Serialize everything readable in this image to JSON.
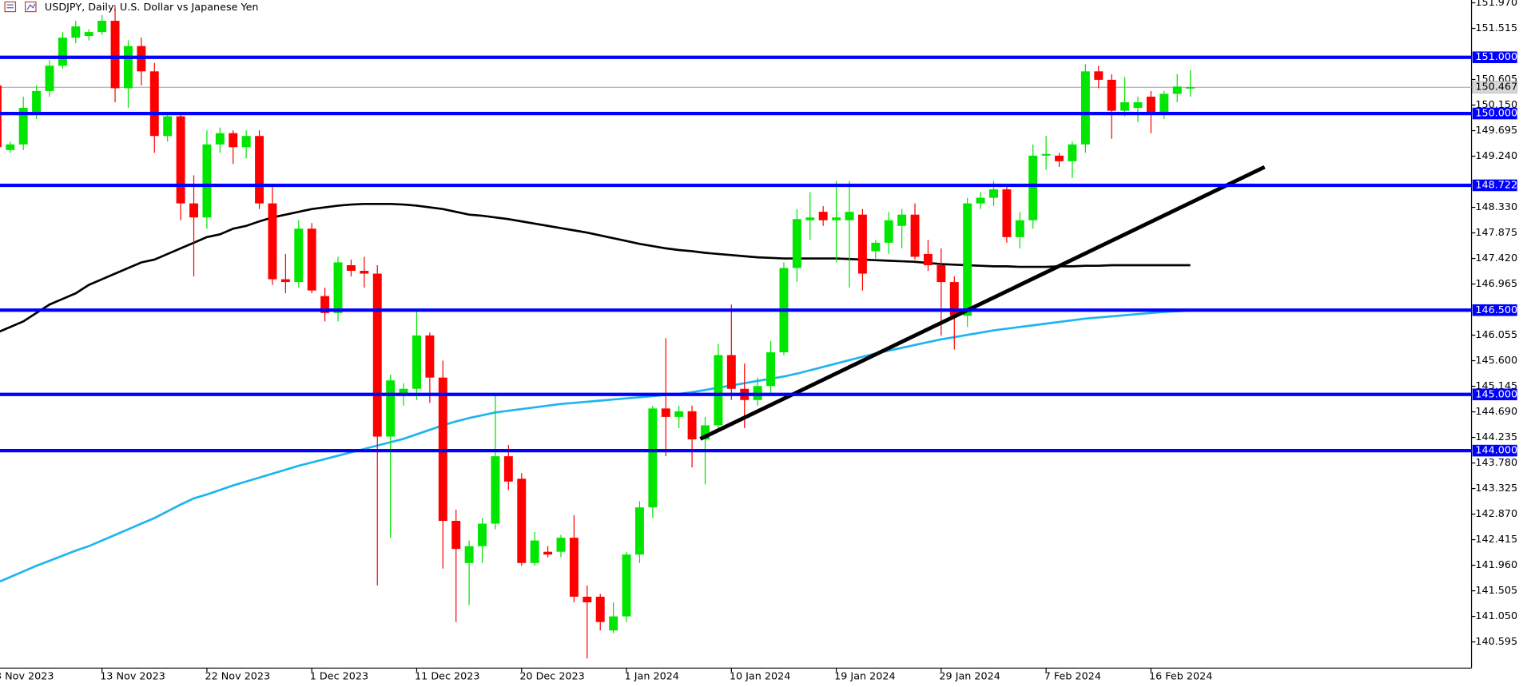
{
  "chart_data": {
    "type": "candlestick",
    "title": "USDJPY, Daily:  U.S. Dollar vs Japanese Yen",
    "categories": [
      "3 Nov 2023",
      null,
      null,
      null,
      null,
      null,
      null,
      null,
      "13 Nov 2023",
      null,
      null,
      null,
      null,
      null,
      null,
      null,
      "22 Nov 2023",
      null,
      null,
      null,
      null,
      null,
      null,
      null,
      "1 Dec 2023",
      null,
      null,
      null,
      null,
      null,
      null,
      null,
      "11 Dec 2023",
      null,
      null,
      null,
      null,
      null,
      null,
      null,
      "20 Dec 2023",
      null,
      null,
      null,
      null,
      null,
      null,
      null,
      "1 Jan 2024",
      null,
      null,
      null,
      null,
      null,
      null,
      null,
      "10 Jan 2024",
      null,
      null,
      null,
      null,
      null,
      null,
      null,
      "19 Jan 2024",
      null,
      null,
      null,
      null,
      null,
      null,
      null,
      "29 Jan 2024",
      null,
      null,
      null,
      null,
      null,
      null,
      null,
      "7 Feb 2024",
      null,
      null,
      null,
      null,
      null,
      null,
      null,
      "16 Feb 2024",
      null,
      null,
      null
    ],
    "open": [
      150.5,
      149.35,
      149.45,
      150.0,
      150.4,
      150.85,
      151.35,
      151.38,
      151.45,
      151.65,
      150.45,
      151.2,
      150.75,
      149.6,
      149.95,
      148.4,
      148.15,
      149.45,
      149.65,
      149.4,
      149.6,
      148.4,
      147.05,
      147.0,
      147.95,
      146.75,
      146.45,
      147.3,
      147.2,
      147.15,
      144.25,
      145.0,
      145.1,
      146.05,
      145.3,
      142.75,
      142.0,
      142.3,
      142.7,
      143.9,
      143.5,
      142.0,
      142.2,
      142.2,
      142.45,
      141.4,
      141.4,
      140.8,
      141.05,
      142.15,
      142.99,
      144.75,
      144.6,
      144.7,
      144.2,
      144.45,
      145.7,
      145.1,
      144.9,
      145.15,
      145.75,
      147.25,
      148.1,
      148.25,
      148.1,
      148.1,
      148.2,
      147.55,
      147.7,
      148.0,
      148.2,
      147.5,
      147.3,
      147.0,
      146.4,
      148.4,
      148.5,
      148.65,
      147.8,
      148.1,
      149.25,
      149.25,
      149.15,
      149.45,
      150.75,
      150.6,
      150.05,
      150.1,
      150.3,
      150.0,
      150.35,
      150.46
    ],
    "high": [
      150.7,
      149.5,
      150.3,
      150.5,
      150.95,
      151.45,
      151.65,
      151.5,
      151.75,
      151.9,
      151.3,
      151.35,
      150.9,
      150.0,
      150.0,
      148.9,
      149.7,
      149.75,
      149.7,
      149.7,
      149.7,
      148.75,
      147.5,
      148.1,
      148.05,
      146.9,
      147.45,
      147.4,
      147.45,
      147.3,
      145.35,
      145.2,
      146.5,
      146.1,
      145.6,
      142.95,
      142.4,
      142.8,
      145.0,
      144.1,
      143.6,
      142.55,
      142.3,
      142.5,
      142.85,
      141.6,
      141.45,
      141.3,
      142.2,
      143.1,
      144.8,
      146.0,
      144.8,
      144.8,
      144.6,
      145.9,
      146.6,
      145.55,
      145.3,
      145.95,
      147.35,
      148.3,
      148.6,
      148.35,
      148.8,
      148.8,
      148.3,
      147.75,
      148.25,
      148.3,
      148.4,
      147.75,
      147.6,
      147.1,
      148.5,
      148.6,
      148.8,
      148.7,
      148.25,
      149.45,
      149.6,
      149.3,
      149.5,
      150.88,
      150.85,
      150.7,
      150.65,
      150.3,
      150.4,
      150.4,
      150.7,
      150.77
    ],
    "low": [
      149.3,
      149.3,
      149.35,
      149.9,
      150.3,
      150.8,
      151.25,
      151.3,
      151.4,
      150.2,
      150.1,
      150.5,
      149.3,
      149.5,
      148.1,
      147.1,
      147.95,
      149.3,
      149.1,
      149.2,
      148.3,
      146.95,
      146.8,
      146.9,
      146.8,
      146.3,
      146.3,
      147.1,
      146.9,
      141.6,
      142.45,
      144.8,
      144.9,
      144.85,
      141.9,
      140.95,
      141.25,
      142.0,
      142.6,
      143.3,
      141.95,
      141.95,
      142.1,
      142.1,
      141.3,
      140.3,
      140.8,
      140.75,
      140.95,
      142.0,
      142.8,
      143.9,
      144.4,
      143.7,
      143.4,
      144.4,
      144.9,
      144.4,
      144.8,
      145.0,
      145.7,
      147.0,
      147.75,
      148.0,
      147.35,
      146.9,
      146.85,
      147.4,
      147.5,
      147.6,
      147.4,
      147.2,
      146.05,
      145.8,
      146.2,
      148.3,
      148.35,
      147.7,
      147.6,
      147.95,
      149.0,
      149.05,
      148.85,
      149.3,
      150.45,
      149.55,
      149.95,
      149.85,
      149.65,
      149.9,
      150.2,
      150.3
    ],
    "close": [
      149.4,
      149.45,
      150.1,
      150.4,
      150.85,
      151.35,
      151.55,
      151.45,
      151.65,
      150.45,
      151.2,
      150.75,
      149.6,
      149.95,
      148.4,
      148.15,
      149.45,
      149.65,
      149.4,
      149.6,
      148.4,
      147.05,
      147.0,
      147.95,
      146.85,
      146.45,
      147.35,
      147.2,
      147.15,
      144.25,
      145.25,
      145.1,
      146.05,
      145.3,
      142.75,
      142.25,
      142.3,
      142.7,
      143.9,
      143.45,
      142.0,
      142.4,
      142.15,
      142.45,
      141.4,
      141.3,
      140.95,
      141.05,
      142.15,
      142.99,
      144.75,
      144.6,
      144.7,
      144.2,
      144.45,
      145.7,
      145.1,
      144.9,
      145.15,
      145.75,
      147.25,
      148.12,
      148.15,
      148.1,
      148.15,
      148.25,
      147.15,
      147.7,
      148.1,
      148.2,
      147.45,
      147.3,
      147.0,
      146.4,
      148.4,
      148.5,
      148.65,
      147.8,
      148.1,
      149.25,
      149.28,
      149.15,
      149.45,
      150.75,
      150.6,
      150.05,
      150.2,
      150.2,
      150.0,
      150.35,
      150.48,
      150.47
    ],
    "up_color": "#00e600",
    "down_color": "#ff0000",
    "lines": [
      {
        "color": "#000000",
        "values": [
          146.1,
          146.2,
          146.3,
          146.45,
          146.6,
          146.7,
          146.8,
          146.95,
          147.05,
          147.15,
          147.25,
          147.35,
          147.4,
          147.5,
          147.6,
          147.7,
          147.8,
          147.85,
          147.95,
          148.0,
          148.08,
          148.15,
          148.2,
          148.25,
          148.3,
          148.33,
          148.36,
          148.38,
          148.39,
          148.39,
          148.39,
          148.38,
          148.36,
          148.33,
          148.3,
          148.25,
          148.2,
          148.18,
          148.15,
          148.12,
          148.08,
          148.04,
          148.0,
          147.96,
          147.92,
          147.88,
          147.83,
          147.78,
          147.73,
          147.68,
          147.64,
          147.6,
          147.57,
          147.55,
          147.52,
          147.5,
          147.48,
          147.46,
          147.44,
          147.43,
          147.42,
          147.42,
          147.42,
          147.42,
          147.42,
          147.41,
          147.4,
          147.39,
          147.38,
          147.37,
          147.36,
          147.34,
          147.32,
          147.31,
          147.3,
          147.29,
          147.28,
          147.28,
          147.27,
          147.27,
          147.27,
          147.28,
          147.28,
          147.29,
          147.29,
          147.3,
          147.3,
          147.3,
          147.3,
          147.3,
          147.3,
          147.3
        ]
      },
      {
        "color": "#1eb4f0",
        "values": [
          141.65,
          141.75,
          141.85,
          141.95,
          142.04,
          142.13,
          142.22,
          142.3,
          142.4,
          142.5,
          142.6,
          142.7,
          142.8,
          142.92,
          143.04,
          143.15,
          143.22,
          143.3,
          143.38,
          143.45,
          143.52,
          143.59,
          143.66,
          143.73,
          143.79,
          143.85,
          143.91,
          143.97,
          144.03,
          144.09,
          144.15,
          144.21,
          144.29,
          144.37,
          144.45,
          144.52,
          144.58,
          144.63,
          144.68,
          144.71,
          144.74,
          144.77,
          144.8,
          144.83,
          144.85,
          144.87,
          144.89,
          144.91,
          144.93,
          144.95,
          144.97,
          144.99,
          145.01,
          145.04,
          145.08,
          145.12,
          145.16,
          145.2,
          145.24,
          145.28,
          145.32,
          145.37,
          145.43,
          145.49,
          145.55,
          145.61,
          145.67,
          145.73,
          145.78,
          145.83,
          145.88,
          145.93,
          145.98,
          146.02,
          146.06,
          146.1,
          146.14,
          146.17,
          146.2,
          146.23,
          146.26,
          146.29,
          146.32,
          146.35,
          146.37,
          146.39,
          146.41,
          146.43,
          146.45,
          146.47,
          146.48,
          146.49
        ]
      }
    ],
    "levels": [
      {
        "value": 151,
        "label": "151.000"
      },
      {
        "value": 150,
        "label": "150.000"
      },
      {
        "value": 148.722,
        "label": "148.722"
      },
      {
        "value": 146.5,
        "label": "146.500"
      },
      {
        "value": 145,
        "label": "145.000"
      },
      {
        "value": 144,
        "label": "144.000"
      }
    ],
    "level_color": "#0000ff",
    "current_price": {
      "value": 150.467,
      "label": "150.467"
    },
    "ylim": [
      140.13,
      152.02
    ],
    "yticks": [
      {
        "value": 151.97,
        "label": "151.970"
      },
      {
        "value": 151.515,
        "label": "151.515"
      },
      {
        "value": 150.605,
        "label": "150.605"
      },
      {
        "value": 150.15,
        "label": "150.150"
      },
      {
        "value": 149.695,
        "label": "149.695"
      },
      {
        "value": 149.24,
        "label": "149.240"
      },
      {
        "value": 148.33,
        "label": "148.330"
      },
      {
        "value": 147.875,
        "label": "147.875"
      },
      {
        "value": 147.42,
        "label": "147.420"
      },
      {
        "value": 146.965,
        "label": "146.965"
      },
      {
        "value": 146.055,
        "label": "146.055"
      },
      {
        "value": 145.6,
        "label": "145.600"
      },
      {
        "value": 145.145,
        "label": "145.145"
      },
      {
        "value": 144.69,
        "label": "144.690"
      },
      {
        "value": 144.235,
        "label": "144.235"
      },
      {
        "value": 143.78,
        "label": "143.780"
      },
      {
        "value": 143.325,
        "label": "143.325"
      },
      {
        "value": 142.87,
        "label": "142.870"
      },
      {
        "value": 142.415,
        "label": "142.415"
      },
      {
        "value": 141.96,
        "label": "141.960"
      },
      {
        "value": 141.505,
        "label": "141.505"
      },
      {
        "value": 141.05,
        "label": "141.050"
      },
      {
        "value": 140.595,
        "label": "140.595"
      }
    ]
  }
}
